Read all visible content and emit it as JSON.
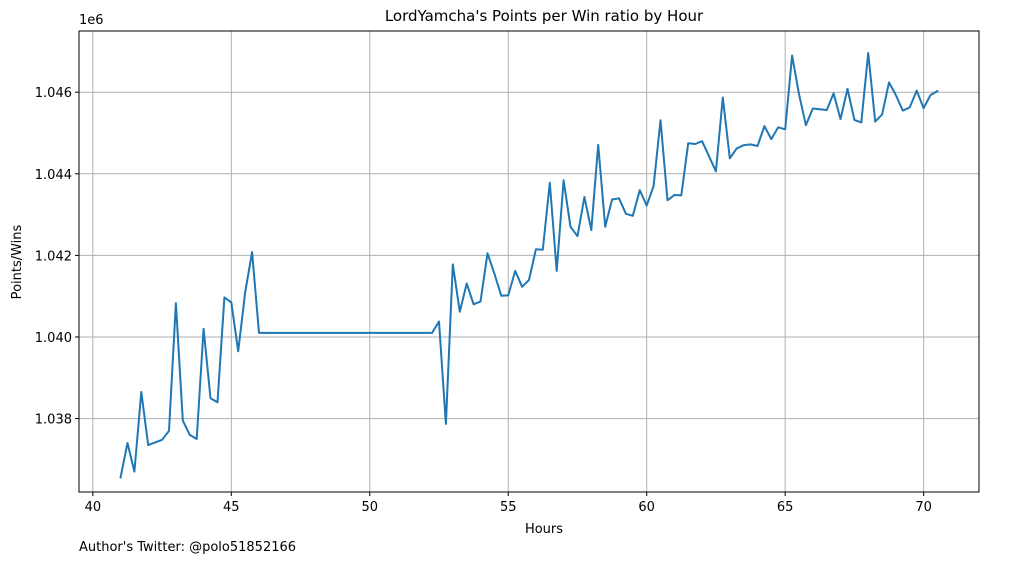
{
  "chart_data": {
    "type": "line",
    "title": "LordYamcha's Points per Win ratio by Hour",
    "xlabel": "Hours",
    "ylabel": "Points/Wins",
    "y_offset_label": "1e6",
    "xlim": [
      39.5,
      72.0
    ],
    "ylim": [
      1036200,
      1047500
    ],
    "x_ticks": [
      40,
      45,
      50,
      55,
      60,
      65,
      70
    ],
    "x_tick_labels": [
      "40",
      "45",
      "50",
      "55",
      "60",
      "65",
      "70"
    ],
    "y_ticks": [
      1038000,
      1040000,
      1042000,
      1044000,
      1046000
    ],
    "y_tick_labels": [
      "1.038",
      "1.040",
      "1.042",
      "1.044",
      "1.046"
    ],
    "grid": true,
    "legend": "none",
    "series": [
      {
        "color": "#1f77b4",
        "points": [
          [
            41.0,
            1036550
          ],
          [
            41.25,
            1037400
          ],
          [
            41.5,
            1036700
          ],
          [
            41.75,
            1038650
          ],
          [
            42.0,
            1037350
          ],
          [
            42.5,
            1037480
          ],
          [
            42.75,
            1037700
          ],
          [
            43.0,
            1040830
          ],
          [
            43.25,
            1037950
          ],
          [
            43.5,
            1037600
          ],
          [
            43.75,
            1037500
          ],
          [
            44.0,
            1040200
          ],
          [
            44.25,
            1038500
          ],
          [
            44.5,
            1038400
          ],
          [
            44.75,
            1040970
          ],
          [
            45.0,
            1040850
          ],
          [
            45.25,
            1039650
          ],
          [
            45.5,
            1041100
          ],
          [
            45.75,
            1042080
          ],
          [
            46.0,
            1040100
          ],
          [
            46.5,
            1040100
          ],
          [
            47.5,
            1040100
          ],
          [
            48.5,
            1040100
          ],
          [
            49.5,
            1040100
          ],
          [
            50.5,
            1040100
          ],
          [
            51.5,
            1040100
          ],
          [
            52.25,
            1040100
          ],
          [
            52.5,
            1040380
          ],
          [
            52.75,
            1037870
          ],
          [
            53.0,
            1041780
          ],
          [
            53.25,
            1040620
          ],
          [
            53.5,
            1041310
          ],
          [
            53.75,
            1040800
          ],
          [
            54.0,
            1040870
          ],
          [
            54.25,
            1042050
          ],
          [
            54.5,
            1041550
          ],
          [
            54.75,
            1041010
          ],
          [
            55.0,
            1041020
          ],
          [
            55.25,
            1041620
          ],
          [
            55.5,
            1041230
          ],
          [
            55.75,
            1041400
          ],
          [
            56.0,
            1042150
          ],
          [
            56.25,
            1042140
          ],
          [
            56.5,
            1043780
          ],
          [
            56.75,
            1041620
          ],
          [
            57.0,
            1043840
          ],
          [
            57.25,
            1042700
          ],
          [
            57.5,
            1042470
          ],
          [
            57.75,
            1043430
          ],
          [
            58.0,
            1042620
          ],
          [
            58.25,
            1044710
          ],
          [
            58.5,
            1042700
          ],
          [
            58.75,
            1043370
          ],
          [
            59.0,
            1043400
          ],
          [
            59.25,
            1043020
          ],
          [
            59.5,
            1042970
          ],
          [
            59.75,
            1043600
          ],
          [
            60.0,
            1043220
          ],
          [
            60.25,
            1043700
          ],
          [
            60.5,
            1045310
          ],
          [
            60.75,
            1043350
          ],
          [
            61.0,
            1043480
          ],
          [
            61.25,
            1043470
          ],
          [
            61.5,
            1044750
          ],
          [
            61.75,
            1044730
          ],
          [
            62.0,
            1044800
          ],
          [
            62.25,
            1044430
          ],
          [
            62.5,
            1044060
          ],
          [
            62.75,
            1045870
          ],
          [
            63.0,
            1044380
          ],
          [
            63.25,
            1044620
          ],
          [
            63.5,
            1044700
          ],
          [
            63.75,
            1044720
          ],
          [
            64.0,
            1044680
          ],
          [
            64.25,
            1045170
          ],
          [
            64.5,
            1044850
          ],
          [
            64.75,
            1045140
          ],
          [
            65.0,
            1045090
          ],
          [
            65.25,
            1046900
          ],
          [
            65.5,
            1045950
          ],
          [
            65.75,
            1045190
          ],
          [
            66.0,
            1045600
          ],
          [
            66.25,
            1045580
          ],
          [
            66.5,
            1045560
          ],
          [
            66.75,
            1045970
          ],
          [
            67.0,
            1045340
          ],
          [
            67.25,
            1046080
          ],
          [
            67.5,
            1045320
          ],
          [
            67.75,
            1045260
          ],
          [
            68.0,
            1046960
          ],
          [
            68.25,
            1045280
          ],
          [
            68.5,
            1045450
          ],
          [
            68.75,
            1046240
          ],
          [
            69.0,
            1045930
          ],
          [
            69.25,
            1045550
          ],
          [
            69.5,
            1045630
          ],
          [
            69.75,
            1046040
          ],
          [
            70.0,
            1045610
          ],
          [
            70.25,
            1045930
          ],
          [
            70.5,
            1046030
          ]
        ]
      }
    ]
  },
  "footer": {
    "text": "Author's Twitter: @polo51852166"
  }
}
